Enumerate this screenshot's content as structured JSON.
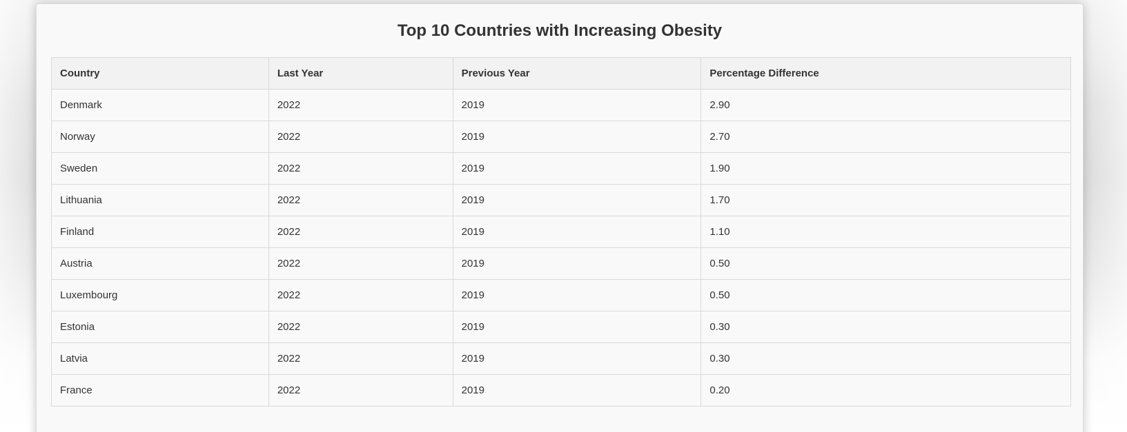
{
  "card": {
    "title": "Top 10 Countries with Increasing Obesity"
  },
  "table": {
    "columns": [
      "Country",
      "Last Year",
      "Previous Year",
      "Percentage Difference"
    ],
    "rows": [
      {
        "country": "Denmark",
        "last_year": "2022",
        "previous_year": "2019",
        "percentage_difference": "2.90"
      },
      {
        "country": "Norway",
        "last_year": "2022",
        "previous_year": "2019",
        "percentage_difference": "2.70"
      },
      {
        "country": "Sweden",
        "last_year": "2022",
        "previous_year": "2019",
        "percentage_difference": "1.90"
      },
      {
        "country": "Lithuania",
        "last_year": "2022",
        "previous_year": "2019",
        "percentage_difference": "1.70"
      },
      {
        "country": "Finland",
        "last_year": "2022",
        "previous_year": "2019",
        "percentage_difference": "1.10"
      },
      {
        "country": "Austria",
        "last_year": "2022",
        "previous_year": "2019",
        "percentage_difference": "0.50"
      },
      {
        "country": "Luxembourg",
        "last_year": "2022",
        "previous_year": "2019",
        "percentage_difference": "0.50"
      },
      {
        "country": "Estonia",
        "last_year": "2022",
        "previous_year": "2019",
        "percentage_difference": "0.30"
      },
      {
        "country": "Latvia",
        "last_year": "2022",
        "previous_year": "2019",
        "percentage_difference": "0.30"
      },
      {
        "country": "France",
        "last_year": "2022",
        "previous_year": "2019",
        "percentage_difference": "0.20"
      }
    ]
  }
}
